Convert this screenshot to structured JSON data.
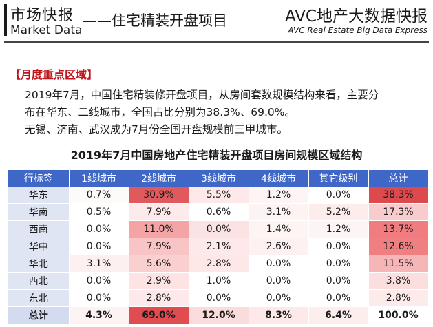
{
  "header": {
    "title_cn": "市场快报",
    "title_en": "Market Data",
    "subtitle": "——住宅精装开盘项目",
    "brand": "AVC地产大数据快报",
    "brand_en": "AVC  Real Estate Big Data Express"
  },
  "section": {
    "title": "【月度重点区域】",
    "lines": [
      "2019年7月，中国住宅精装修开盘项目，从房间套数规模结构来看，主要分",
      "布在华东、二线城市，全国占比分别为38.3%、69.0%。",
      "无锡、济南、武汉成为7月份全国开盘规模前三甲城市。"
    ]
  },
  "table": {
    "title": "2019年7月中国房地产住宅精装开盘项目房间规模区域结构",
    "headers": [
      "行标签",
      "1线城市",
      "2线城市",
      "3线城市",
      "4线城市",
      "其它级别",
      "总计"
    ],
    "rows": [
      {
        "label": "华东",
        "cells": [
          "0.7%",
          "30.9%",
          "5.5%",
          "1.2%",
          "0.0%",
          "38.3%"
        ],
        "fills": [
          "#fdfafa",
          "#e05a5d",
          "#fde9e9",
          "#fdf5f5",
          "#ffffff",
          "#dc4a4e"
        ]
      },
      {
        "label": "华南",
        "cells": [
          "0.5%",
          "7.9%",
          "0.6%",
          "3.1%",
          "5.2%",
          "17.3%"
        ],
        "fills": [
          "#ffffff",
          "#fdeaea",
          "#ffffff",
          "#fdf3f3",
          "#fcecec",
          "#f8cbcd"
        ]
      },
      {
        "label": "西南",
        "cells": [
          "0.0%",
          "11.0%",
          "0.0%",
          "1.4%",
          "1.2%",
          "13.7%"
        ],
        "fills": [
          "#ffffff",
          "#f5a4a6",
          "#fce3e3",
          "#fdf4f4",
          "#fdf5f5",
          "#f07c7f"
        ]
      },
      {
        "label": "华中",
        "cells": [
          "0.0%",
          "7.9%",
          "2.1%",
          "2.6%",
          "0.0%",
          "12.6%"
        ],
        "fills": [
          "#ffffff",
          "#f8c4c5",
          "#fde9e9",
          "#fdf1f1",
          "#ffffff",
          "#f07f82"
        ]
      },
      {
        "label": "华北",
        "cells": [
          "3.1%",
          "5.6%",
          "2.8%",
          "0.0%",
          "0.0%",
          "11.5%"
        ],
        "fills": [
          "#fdf0f0",
          "#f9cfd0",
          "#fde7e7",
          "#ffffff",
          "#ffffff",
          "#f6b5b7"
        ]
      },
      {
        "label": "西北",
        "cells": [
          "0.0%",
          "2.9%",
          "1.0%",
          "0.0%",
          "0.0%",
          "3.8%"
        ],
        "fills": [
          "#ffffff",
          "#fde3e3",
          "#ffffff",
          "#ffffff",
          "#ffffff",
          "#fbdede"
        ]
      },
      {
        "label": "东北",
        "cells": [
          "0.0%",
          "2.8%",
          "0.0%",
          "0.0%",
          "0.0%",
          "2.8%"
        ],
        "fills": [
          "#ffffff",
          "#fde9e9",
          "#ffffff",
          "#ffffff",
          "#ffffff",
          "#fdeaea"
        ]
      }
    ],
    "total": {
      "label": "总计",
      "cells": [
        "4.3%",
        "69.0%",
        "12.0%",
        "8.3%",
        "6.4%",
        "100.0%"
      ],
      "fills": [
        "#fdf3f3",
        "#e04c50",
        "#fbdcdc",
        "#fde9e9",
        "#fdeeee",
        "#ffffff"
      ]
    }
  },
  "colors": {
    "accent_red": "#c0141b",
    "header_blue": "#3f67c8",
    "label_bg": "#dfe5f2"
  }
}
